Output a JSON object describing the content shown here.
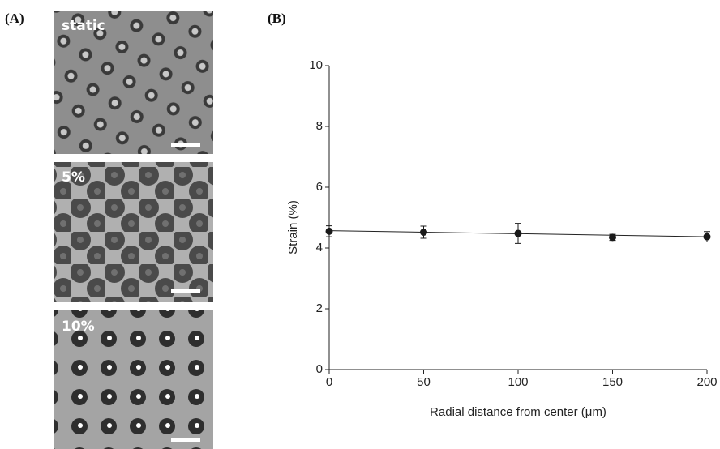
{
  "panel_labels": [
    "(A)",
    "(B)"
  ],
  "images": [
    {
      "label": "static"
    },
    {
      "label": "5%"
    },
    {
      "label": "10%"
    }
  ],
  "chart_data": {
    "type": "scatter",
    "x_label": "Radial distance from center (μm)",
    "y_label": "Strain (%)",
    "x": [
      0,
      50,
      100,
      150,
      200
    ],
    "values": [
      4.55,
      4.52,
      4.48,
      4.35,
      4.37
    ],
    "errors": [
      0.18,
      0.2,
      0.33,
      0.1,
      0.17
    ],
    "color": "#1a1a1a",
    "trendline": {
      "x": [
        0,
        200
      ],
      "values": [
        4.57,
        4.37
      ]
    },
    "xlim": [
      0,
      200
    ],
    "ylim": [
      0,
      10
    ],
    "xticks": [
      0,
      50,
      100,
      150,
      200
    ],
    "yticks": [
      0,
      2,
      4,
      6,
      8,
      10
    ]
  }
}
